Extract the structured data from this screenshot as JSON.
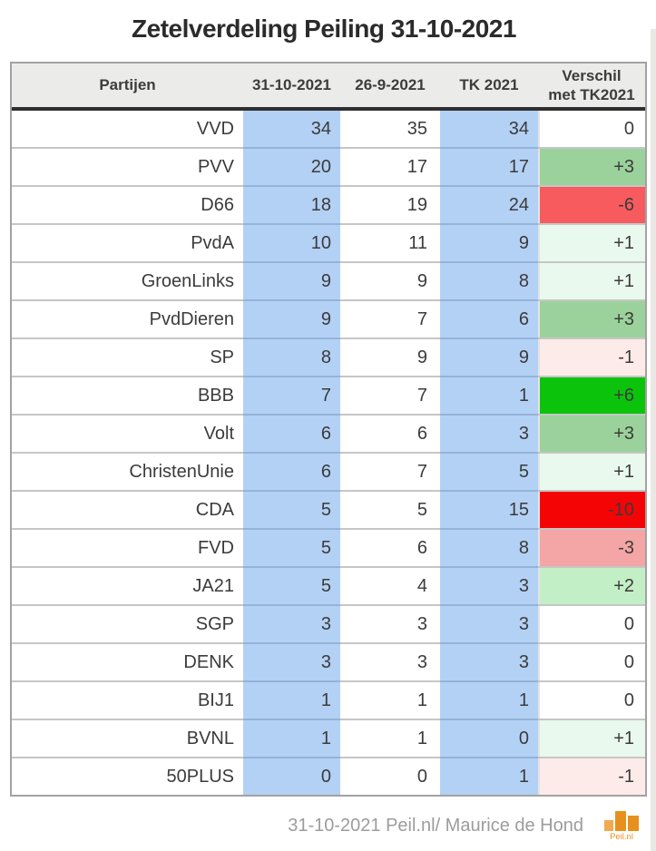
{
  "title": "Zetelverdeling Peiling 31-10-2021",
  "chart_data": {
    "type": "table",
    "title": "Zetelverdeling Peiling 31-10-2021",
    "columns": [
      "Partijen",
      "31-10-2021",
      "26-9-2021",
      "TK 2021",
      "Verschil met TK2021"
    ],
    "rows": [
      [
        "VVD",
        34,
        35,
        34,
        0
      ],
      [
        "PVV",
        20,
        17,
        17,
        3
      ],
      [
        "D66",
        18,
        19,
        24,
        -6
      ],
      [
        "PvdA",
        10,
        11,
        9,
        1
      ],
      [
        "GroenLinks",
        9,
        9,
        8,
        1
      ],
      [
        "PvdDieren",
        9,
        7,
        6,
        3
      ],
      [
        "SP",
        8,
        9,
        9,
        -1
      ],
      [
        "BBB",
        7,
        7,
        1,
        6
      ],
      [
        "Volt",
        6,
        6,
        3,
        3
      ],
      [
        "ChristenUnie",
        6,
        7,
        5,
        1
      ],
      [
        "CDA",
        5,
        5,
        15,
        -10
      ],
      [
        "FVD",
        5,
        6,
        8,
        -3
      ],
      [
        "JA21",
        5,
        4,
        3,
        2
      ],
      [
        "SGP",
        3,
        3,
        3,
        0
      ],
      [
        "DENK",
        3,
        3,
        3,
        0
      ],
      [
        "BIJ1",
        1,
        1,
        1,
        0
      ],
      [
        "BVNL",
        1,
        1,
        0,
        1
      ],
      [
        "50PLUS",
        0,
        0,
        1,
        -1
      ]
    ],
    "source": "31-10-2021 Peil.nl/ Maurice de Hond"
  },
  "table": {
    "columns": [
      {
        "label": "Partijen"
      },
      {
        "label": "31-10-2021"
      },
      {
        "label": "26-9-2021"
      },
      {
        "label": "TK 2021"
      },
      {
        "label": "Verschil met TK2021",
        "line1": "Verschil",
        "line2": "met TK2021"
      }
    ],
    "highlighted_columns": [
      "31-10-2021",
      "TK 2021"
    ]
  },
  "verschil_colors": {
    "0": "#ffffff",
    "1": "#eaf9ed",
    "2": "#c3efc6",
    "3": "#9bd29b",
    "6": "#0cc30c",
    "-1": "#fcebe9",
    "-3": "#f4a5a5",
    "-6": "#f75b5e",
    "-10": "#f50406"
  },
  "colors": {
    "highlight_blue": "#aacdf4",
    "header_bg": "#ebebe9",
    "row_border": "#c6c6c6",
    "table_border": "#a2a2a2",
    "header_rule": "#2f2f2f",
    "text": "#3b3b3b",
    "title_text": "#2b2b2b",
    "footer_text": "#9c9c9c",
    "logo_orange": "#e8901d",
    "logo_orange_light": "#f2a94f"
  },
  "footer": {
    "credit": "31-10-2021 Peil.nl/ Maurice de Hond",
    "logo_text": "Peil.nl"
  }
}
